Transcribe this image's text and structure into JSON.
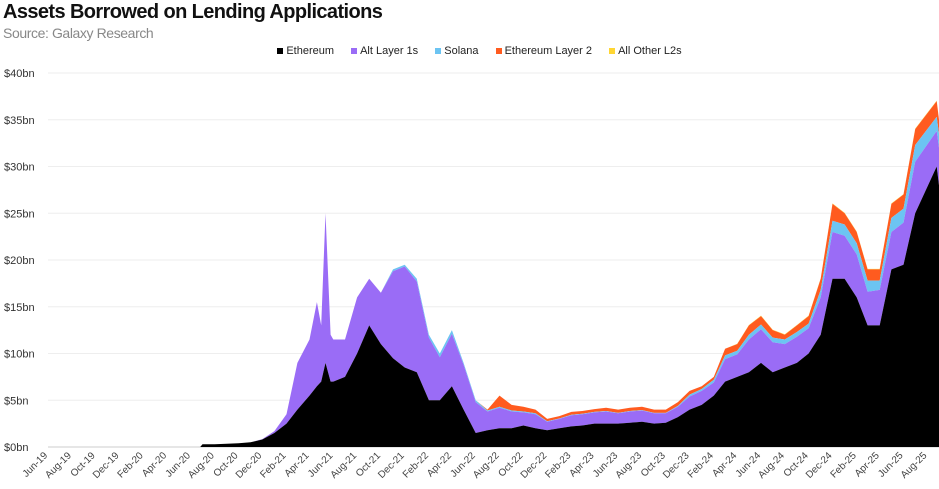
{
  "chart_data": {
    "type": "area",
    "stacked": true,
    "title": "Assets Borrowed on Lending Applications",
    "subtitle": "Source: Galaxy Research",
    "xlabel": "",
    "ylabel": "",
    "ylim": [
      0,
      40
    ],
    "yticks": [
      "$0bn",
      "$5bn",
      "$10bn",
      "$15bn",
      "$20bn",
      "$25bn",
      "$30bn",
      "$35bn",
      "$40bn"
    ],
    "xlim": [
      "2019-06-01",
      "2025-08-31"
    ],
    "xticks": [
      "Jun-19",
      "Aug-19",
      "Oct-19",
      "Dec-19",
      "Feb-20",
      "Apr-20",
      "Jun-20",
      "Aug-20",
      "Oct-20",
      "Dec-20",
      "Feb-21",
      "Apr-21",
      "Jun-21",
      "Aug-21",
      "Oct-21",
      "Dec-21",
      "Feb-22",
      "Apr-22",
      "Jun-22",
      "Aug-22",
      "Oct-22",
      "Dec-22",
      "Feb-23",
      "Apr-23",
      "Jun-23",
      "Aug-23",
      "Oct-23",
      "Dec-23",
      "Feb-24",
      "Apr-24",
      "Jun-24",
      "Aug-24",
      "Oct-24",
      "Dec-24",
      "Feb-25",
      "Apr-25",
      "Jun-25",
      "Aug-25"
    ],
    "grid": true,
    "legend_position": "top-center",
    "units": "USD billions",
    "series": [
      {
        "name": "Ethereum",
        "color": "#000000"
      },
      {
        "name": "Alt Layer 1s",
        "color": "#9a6cf6"
      },
      {
        "name": "Solana",
        "color": "#6cc4f2"
      },
      {
        "name": "Ethereum Layer 2",
        "color": "#ff5b1f"
      },
      {
        "name": "All Other L2s",
        "color": "#ffd633"
      }
    ],
    "columns": [
      "date",
      "Ethereum",
      "Alt Layer 1s",
      "Solana",
      "Ethereum Layer 2",
      "All Other L2s"
    ],
    "rows": [
      [
        "2019-06-01",
        0,
        0,
        0,
        0,
        0
      ],
      [
        "2020-06-25",
        0,
        0,
        0,
        0,
        0
      ],
      [
        "2020-07-01",
        0.3,
        0,
        0,
        0,
        0
      ],
      [
        "2020-08-01",
        0.3,
        0,
        0,
        0,
        0
      ],
      [
        "2020-09-01",
        0.35,
        0,
        0,
        0,
        0
      ],
      [
        "2020-10-01",
        0.4,
        0,
        0,
        0,
        0
      ],
      [
        "2020-11-01",
        0.5,
        0,
        0,
        0,
        0
      ],
      [
        "2020-12-01",
        0.8,
        0.05,
        0,
        0,
        0
      ],
      [
        "2021-01-01",
        1.5,
        0.2,
        0,
        0,
        0
      ],
      [
        "2021-02-01",
        2.5,
        1.0,
        0,
        0,
        0
      ],
      [
        "2021-03-01",
        4,
        5,
        0,
        0,
        0
      ],
      [
        "2021-04-01",
        5.5,
        6,
        0,
        0,
        0
      ],
      [
        "2021-04-20",
        6.5,
        9,
        0,
        0,
        0
      ],
      [
        "2021-05-01",
        7,
        6,
        0,
        0,
        0
      ],
      [
        "2021-05-12",
        9,
        16,
        0,
        0,
        0
      ],
      [
        "2021-05-25",
        7,
        5,
        0,
        0,
        0
      ],
      [
        "2021-06-01",
        7,
        4.5,
        0,
        0,
        0
      ],
      [
        "2021-07-01",
        7.5,
        4,
        0,
        0,
        0
      ],
      [
        "2021-08-01",
        10,
        6,
        0,
        0,
        0
      ],
      [
        "2021-09-01",
        13,
        5,
        0,
        0,
        0
      ],
      [
        "2021-10-01",
        11,
        5.5,
        0,
        0,
        0
      ],
      [
        "2021-11-01",
        9.5,
        9.3,
        0.2,
        0,
        0
      ],
      [
        "2021-12-01",
        8.5,
        10.8,
        0.2,
        0,
        0
      ],
      [
        "2022-01-01",
        8,
        9.7,
        0.3,
        0,
        0
      ],
      [
        "2022-02-01",
        5,
        6.7,
        0.3,
        0,
        0
      ],
      [
        "2022-03-01",
        5,
        4.6,
        0.4,
        0,
        0
      ],
      [
        "2022-04-01",
        6.5,
        5.6,
        0.4,
        0,
        0
      ],
      [
        "2022-05-01",
        4,
        4.8,
        0.2,
        0,
        0
      ],
      [
        "2022-06-01",
        1.5,
        3.3,
        0.2,
        0,
        0
      ],
      [
        "2022-07-01",
        1.8,
        2.0,
        0.1,
        0.1,
        0
      ],
      [
        "2022-08-01",
        2,
        2.2,
        0.1,
        1.2,
        0
      ],
      [
        "2022-09-01",
        2,
        1.8,
        0.1,
        0.6,
        0
      ],
      [
        "2022-10-01",
        2.3,
        1.4,
        0.1,
        0.5,
        0
      ],
      [
        "2022-11-01",
        2,
        1.5,
        0.1,
        0.4,
        0
      ],
      [
        "2022-12-01",
        1.8,
        0.9,
        0.05,
        0.25,
        0
      ],
      [
        "2023-01-01",
        2,
        1.0,
        0.05,
        0.25,
        0
      ],
      [
        "2023-02-01",
        2.2,
        1.2,
        0.05,
        0.3,
        0
      ],
      [
        "2023-03-01",
        2.3,
        1.2,
        0.05,
        0.3,
        0
      ],
      [
        "2023-04-01",
        2.5,
        1.2,
        0.05,
        0.3,
        0
      ],
      [
        "2023-05-01",
        2.5,
        1.3,
        0.05,
        0.35,
        0
      ],
      [
        "2023-06-01",
        2.5,
        1.1,
        0.05,
        0.35,
        0
      ],
      [
        "2023-07-01",
        2.6,
        1.2,
        0.05,
        0.35,
        0
      ],
      [
        "2023-08-01",
        2.7,
        1.2,
        0.05,
        0.35,
        0
      ],
      [
        "2023-09-01",
        2.5,
        1.1,
        0.05,
        0.35,
        0
      ],
      [
        "2023-10-01",
        2.6,
        1.0,
        0.05,
        0.35,
        0
      ],
      [
        "2023-11-01",
        3.2,
        1.1,
        0.1,
        0.4,
        0
      ],
      [
        "2023-12-01",
        4,
        1.4,
        0.2,
        0.4,
        0
      ],
      [
        "2024-01-01",
        4.5,
        1.5,
        0.2,
        0.3,
        0
      ],
      [
        "2024-02-01",
        5.5,
        1.4,
        0.3,
        0.3,
        0
      ],
      [
        "2024-03-01",
        7,
        2.4,
        0.4,
        0.7,
        0
      ],
      [
        "2024-04-01",
        7.5,
        2.4,
        0.4,
        0.7,
        0.05
      ],
      [
        "2024-05-01",
        8,
        3.5,
        0.5,
        1.0,
        0.05
      ],
      [
        "2024-06-01",
        9,
        3.6,
        0.5,
        0.9,
        0.05
      ],
      [
        "2024-07-01",
        8,
        3.2,
        0.5,
        0.8,
        0.05
      ],
      [
        "2024-08-01",
        8.5,
        2.5,
        0.5,
        0.5,
        0.05
      ],
      [
        "2024-09-01",
        9,
        2.8,
        0.5,
        0.7,
        0.05
      ],
      [
        "2024-10-01",
        10,
        2.7,
        0.5,
        0.8,
        0.05
      ],
      [
        "2024-11-01",
        12,
        4.0,
        0.8,
        1.2,
        0.05
      ],
      [
        "2024-12-01",
        18,
        5.0,
        1.2,
        1.8,
        0.05
      ],
      [
        "2025-01-01",
        18,
        4.6,
        1.2,
        1.2,
        0.05
      ],
      [
        "2025-02-01",
        16,
        4.6,
        1.2,
        1.2,
        0.05
      ],
      [
        "2025-03-01",
        13,
        3.6,
        1.2,
        1.2,
        0.05
      ],
      [
        "2025-04-01",
        13,
        3.8,
        1.0,
        1.2,
        0.05
      ],
      [
        "2025-05-01",
        19,
        4.0,
        1.5,
        1.5,
        0.05
      ],
      [
        "2025-06-01",
        19.5,
        4.5,
        1.5,
        1.5,
        0.05
      ],
      [
        "2025-07-01",
        25,
        5.5,
        1.8,
        1.7,
        0.05
      ],
      [
        "2025-08-25",
        30,
        3.8,
        1.5,
        1.7,
        0.05
      ],
      [
        "2025-08-31",
        28,
        4,
        1.5,
        1.5,
        0.05
      ]
    ]
  }
}
